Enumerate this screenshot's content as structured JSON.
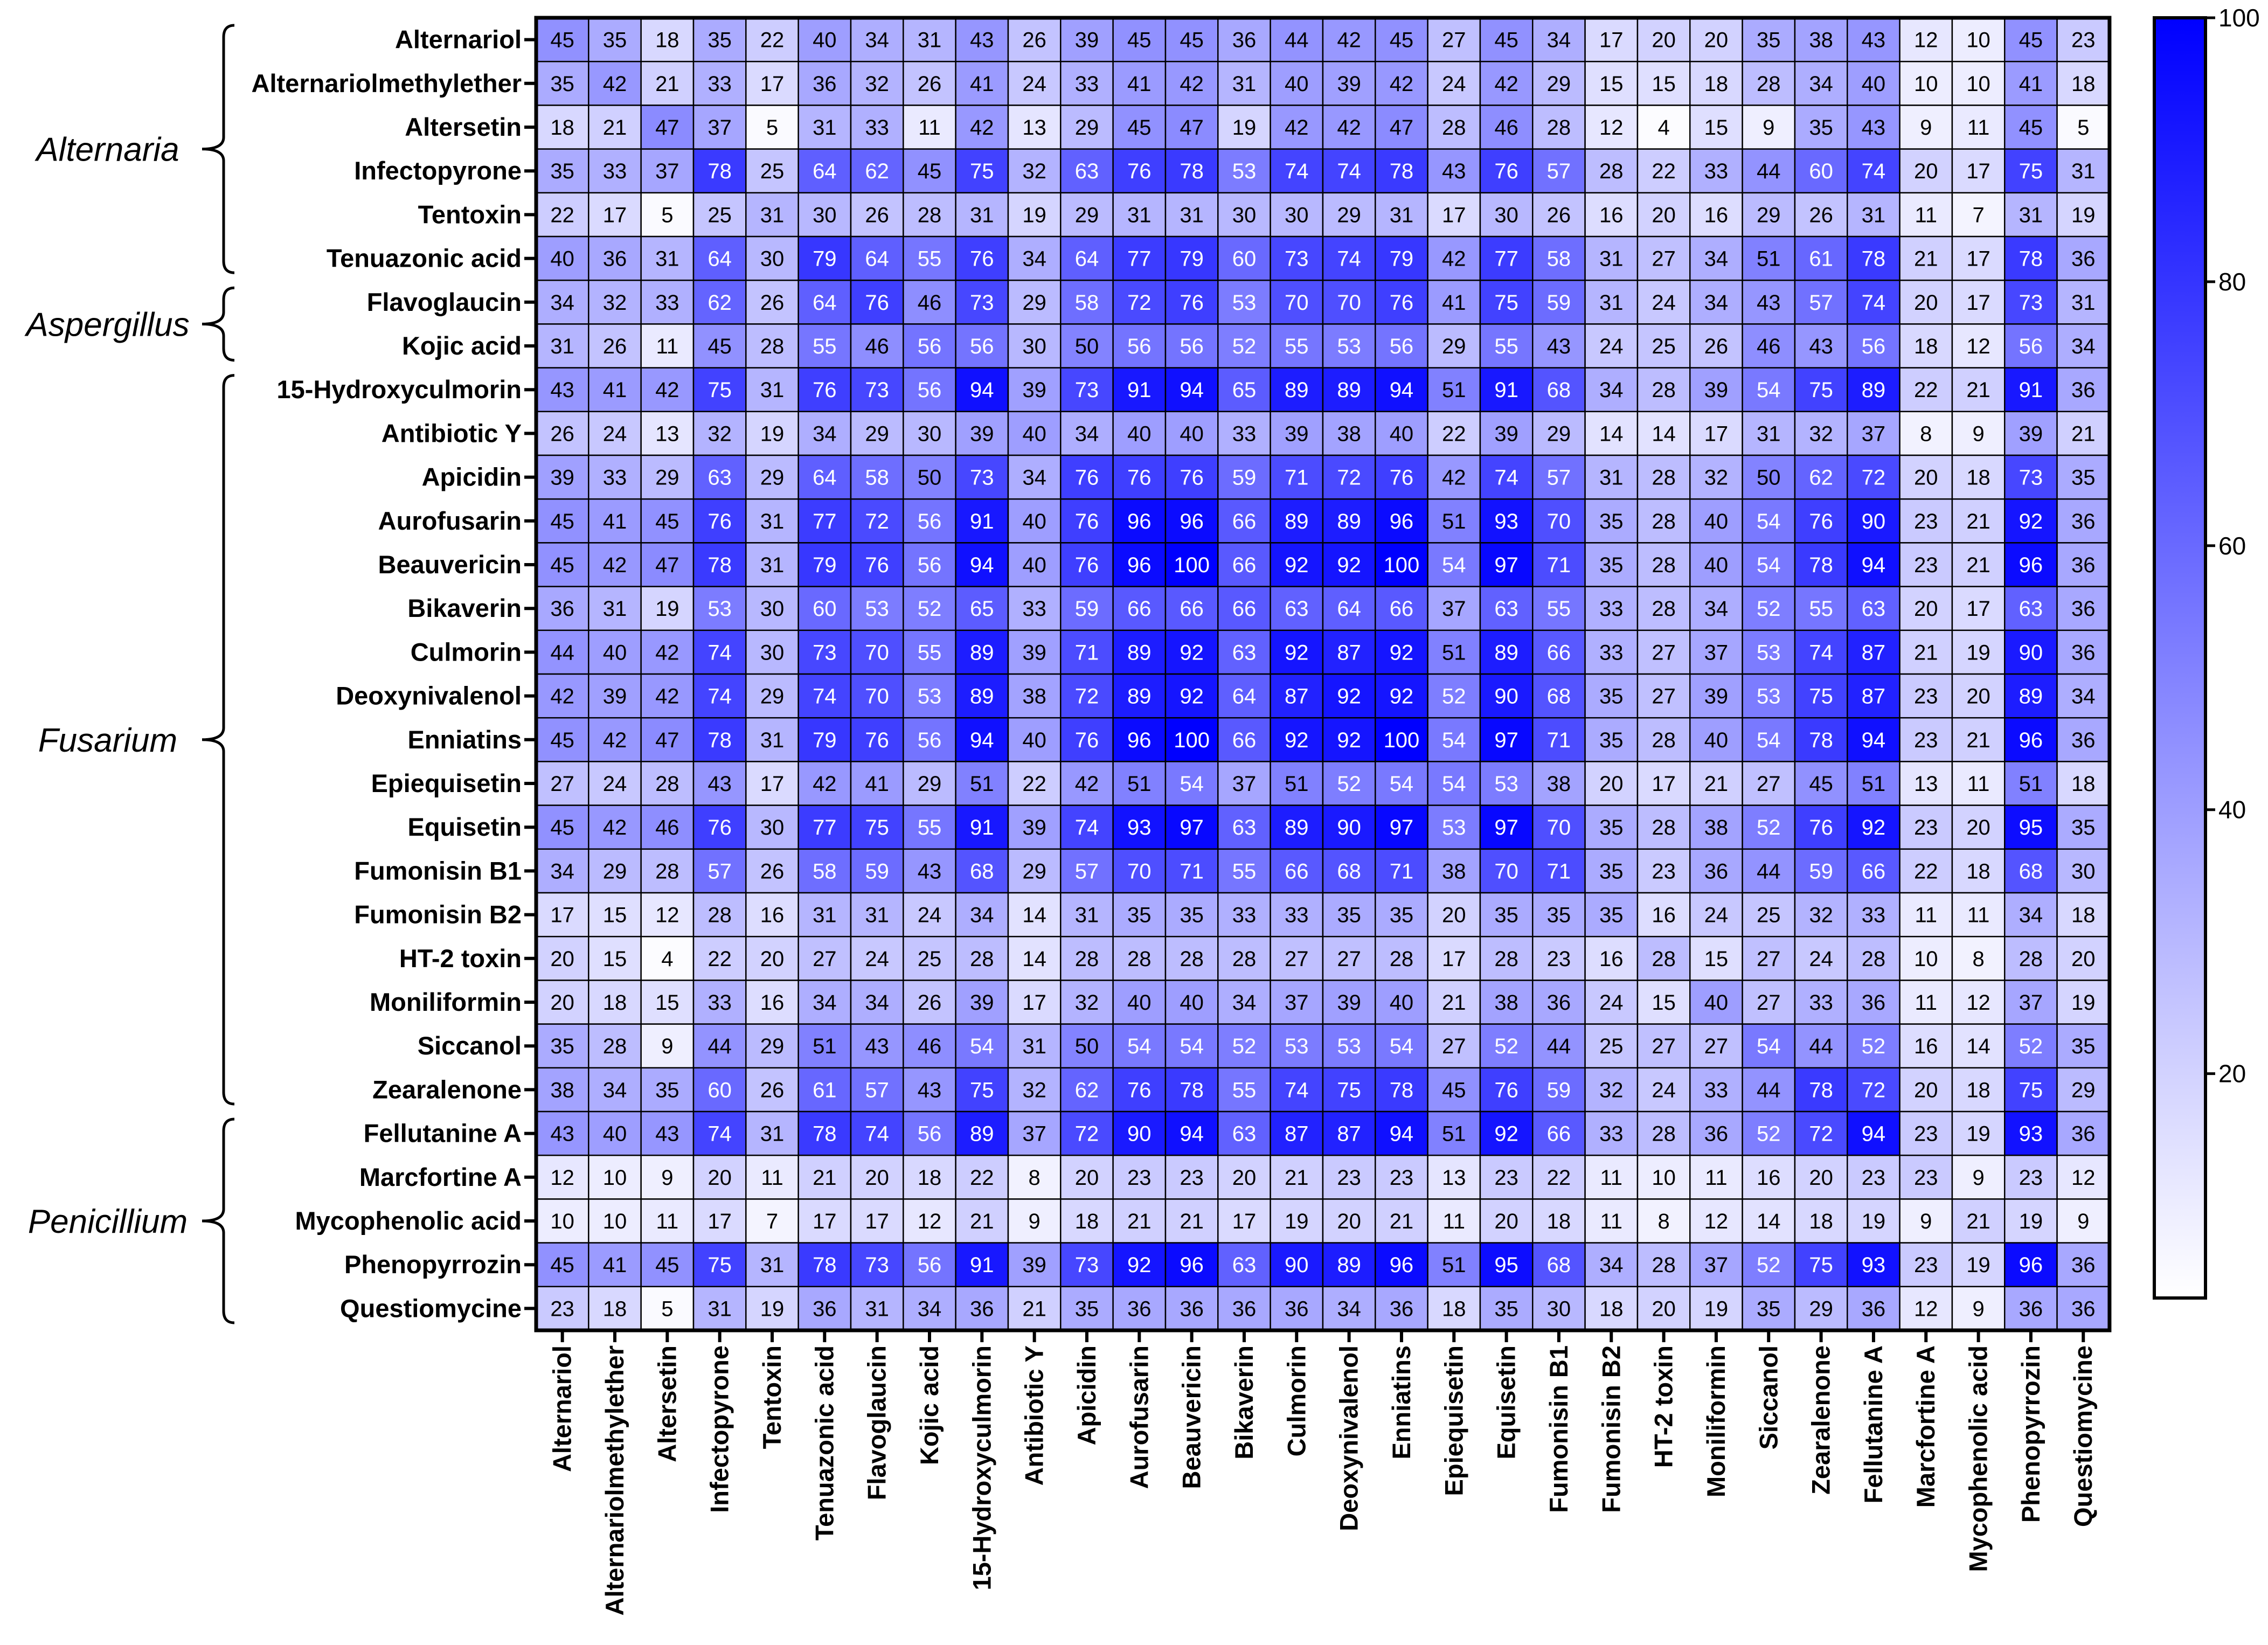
{
  "chart_data": {
    "type": "heatmap",
    "title": "",
    "xlabel": "",
    "ylabel": "",
    "labels": [
      "Alternariol",
      "Alternariolmethylether",
      "Altersetin",
      "Infectopyrone",
      "Tentoxin",
      "Tenuazonic acid",
      "Flavoglaucin",
      "Kojic acid",
      "15-Hydroxyculmorin",
      "Antibiotic Y",
      "Apicidin",
      "Aurofusarin",
      "Beauvericin",
      "Bikaverin",
      "Culmorin",
      "Deoxynivalenol",
      "Enniatins",
      "Epiequisetin",
      "Equisetin",
      "Fumonisin B1",
      "Fumonisin B2",
      "HT-2 toxin",
      "Moniliformin",
      "Siccanol",
      "Zearalenone",
      "Fellutanine A",
      "Marcfortine A",
      "Mycophenolic acid",
      "Phenopyrrozin",
      "Questiomycine"
    ],
    "groups": [
      {
        "name": "Alternaria",
        "rows": [
          0,
          5
        ]
      },
      {
        "name": "Aspergillus",
        "rows": [
          6,
          7
        ]
      },
      {
        "name": "Fusarium",
        "rows": [
          8,
          24
        ]
      },
      {
        "name": "Penicillium",
        "rows": [
          25,
          29
        ]
      }
    ],
    "values": [
      [
        45,
        35,
        18,
        35,
        22,
        40,
        34,
        31,
        43,
        26,
        39,
        45,
        45,
        36,
        44,
        42,
        45,
        27,
        45,
        34,
        17,
        20,
        20,
        35,
        38,
        43,
        12,
        10,
        45,
        23
      ],
      [
        35,
        42,
        21,
        33,
        17,
        36,
        32,
        26,
        41,
        24,
        33,
        41,
        42,
        31,
        40,
        39,
        42,
        24,
        42,
        29,
        15,
        15,
        18,
        28,
        34,
        40,
        10,
        10,
        41,
        18
      ],
      [
        18,
        21,
        47,
        37,
        5,
        31,
        33,
        11,
        42,
        13,
        29,
        45,
        47,
        19,
        42,
        42,
        47,
        28,
        46,
        28,
        12,
        4,
        15,
        9,
        35,
        43,
        9,
        11,
        45,
        5
      ],
      [
        35,
        33,
        37,
        78,
        25,
        64,
        62,
        45,
        75,
        32,
        63,
        76,
        78,
        53,
        74,
        74,
        78,
        43,
        76,
        57,
        28,
        22,
        33,
        44,
        60,
        74,
        20,
        17,
        75,
        31
      ],
      [
        22,
        17,
        5,
        25,
        31,
        30,
        26,
        28,
        31,
        19,
        29,
        31,
        31,
        30,
        30,
        29,
        31,
        17,
        30,
        26,
        16,
        20,
        16,
        29,
        26,
        31,
        11,
        7,
        31,
        19
      ],
      [
        40,
        36,
        31,
        64,
        30,
        79,
        64,
        55,
        76,
        34,
        64,
        77,
        79,
        60,
        73,
        74,
        79,
        42,
        77,
        58,
        31,
        27,
        34,
        51,
        61,
        78,
        21,
        17,
        78,
        36
      ],
      [
        34,
        32,
        33,
        62,
        26,
        64,
        76,
        46,
        73,
        29,
        58,
        72,
        76,
        53,
        70,
        70,
        76,
        41,
        75,
        59,
        31,
        24,
        34,
        43,
        57,
        74,
        20,
        17,
        73,
        31
      ],
      [
        31,
        26,
        11,
        45,
        28,
        55,
        46,
        56,
        56,
        30,
        50,
        56,
        56,
        52,
        55,
        53,
        56,
        29,
        55,
        43,
        24,
        25,
        26,
        46,
        43,
        56,
        18,
        12,
        56,
        34
      ],
      [
        43,
        41,
        42,
        75,
        31,
        76,
        73,
        56,
        94,
        39,
        73,
        91,
        94,
        65,
        89,
        89,
        94,
        51,
        91,
        68,
        34,
        28,
        39,
        54,
        75,
        89,
        22,
        21,
        91,
        36
      ],
      [
        26,
        24,
        13,
        32,
        19,
        34,
        29,
        30,
        39,
        40,
        34,
        40,
        40,
        33,
        39,
        38,
        40,
        22,
        39,
        29,
        14,
        14,
        17,
        31,
        32,
        37,
        8,
        9,
        39,
        21
      ],
      [
        39,
        33,
        29,
        63,
        29,
        64,
        58,
        50,
        73,
        34,
        76,
        76,
        76,
        59,
        71,
        72,
        76,
        42,
        74,
        57,
        31,
        28,
        32,
        50,
        62,
        72,
        20,
        18,
        73,
        35
      ],
      [
        45,
        41,
        45,
        76,
        31,
        77,
        72,
        56,
        91,
        40,
        76,
        96,
        96,
        66,
        89,
        89,
        96,
        51,
        93,
        70,
        35,
        28,
        40,
        54,
        76,
        90,
        23,
        21,
        92,
        36
      ],
      [
        45,
        42,
        47,
        78,
        31,
        79,
        76,
        56,
        94,
        40,
        76,
        96,
        100,
        66,
        92,
        92,
        100,
        54,
        97,
        71,
        35,
        28,
        40,
        54,
        78,
        94,
        23,
        21,
        96,
        36
      ],
      [
        36,
        31,
        19,
        53,
        30,
        60,
        53,
        52,
        65,
        33,
        59,
        66,
        66,
        66,
        63,
        64,
        66,
        37,
        63,
        55,
        33,
        28,
        34,
        52,
        55,
        63,
        20,
        17,
        63,
        36
      ],
      [
        44,
        40,
        42,
        74,
        30,
        73,
        70,
        55,
        89,
        39,
        71,
        89,
        92,
        63,
        92,
        87,
        92,
        51,
        89,
        66,
        33,
        27,
        37,
        53,
        74,
        87,
        21,
        19,
        90,
        36
      ],
      [
        42,
        39,
        42,
        74,
        29,
        74,
        70,
        53,
        89,
        38,
        72,
        89,
        92,
        64,
        87,
        92,
        92,
        52,
        90,
        68,
        35,
        27,
        39,
        53,
        75,
        87,
        23,
        20,
        89,
        34
      ],
      [
        45,
        42,
        47,
        78,
        31,
        79,
        76,
        56,
        94,
        40,
        76,
        96,
        100,
        66,
        92,
        92,
        100,
        54,
        97,
        71,
        35,
        28,
        40,
        54,
        78,
        94,
        23,
        21,
        96,
        36
      ],
      [
        27,
        24,
        28,
        43,
        17,
        42,
        41,
        29,
        51,
        22,
        42,
        51,
        54,
        37,
        51,
        52,
        54,
        54,
        53,
        38,
        20,
        17,
        21,
        27,
        45,
        51,
        13,
        11,
        51,
        18
      ],
      [
        45,
        42,
        46,
        76,
        30,
        77,
        75,
        55,
        91,
        39,
        74,
        93,
        97,
        63,
        89,
        90,
        97,
        53,
        97,
        70,
        35,
        28,
        38,
        52,
        76,
        92,
        23,
        20,
        95,
        35
      ],
      [
        34,
        29,
        28,
        57,
        26,
        58,
        59,
        43,
        68,
        29,
        57,
        70,
        71,
        55,
        66,
        68,
        71,
        38,
        70,
        71,
        35,
        23,
        36,
        44,
        59,
        66,
        22,
        18,
        68,
        30
      ],
      [
        17,
        15,
        12,
        28,
        16,
        31,
        31,
        24,
        34,
        14,
        31,
        35,
        35,
        33,
        33,
        35,
        35,
        20,
        35,
        35,
        35,
        16,
        24,
        25,
        32,
        33,
        11,
        11,
        34,
        18
      ],
      [
        20,
        15,
        4,
        22,
        20,
        27,
        24,
        25,
        28,
        14,
        28,
        28,
        28,
        28,
        27,
        27,
        28,
        17,
        28,
        23,
        16,
        28,
        15,
        27,
        24,
        28,
        10,
        8,
        28,
        20
      ],
      [
        20,
        18,
        15,
        33,
        16,
        34,
        34,
        26,
        39,
        17,
        32,
        40,
        40,
        34,
        37,
        39,
        40,
        21,
        38,
        36,
        24,
        15,
        40,
        27,
        33,
        36,
        11,
        12,
        37,
        19
      ],
      [
        35,
        28,
        9,
        44,
        29,
        51,
        43,
        46,
        54,
        31,
        50,
        54,
        54,
        52,
        53,
        53,
        54,
        27,
        52,
        44,
        25,
        27,
        27,
        54,
        44,
        52,
        16,
        14,
        52,
        35
      ],
      [
        38,
        34,
        35,
        60,
        26,
        61,
        57,
        43,
        75,
        32,
        62,
        76,
        78,
        55,
        74,
        75,
        78,
        45,
        76,
        59,
        32,
        24,
        33,
        44,
        78,
        72,
        20,
        18,
        75,
        29
      ],
      [
        43,
        40,
        43,
        74,
        31,
        78,
        74,
        56,
        89,
        37,
        72,
        90,
        94,
        63,
        87,
        87,
        94,
        51,
        92,
        66,
        33,
        28,
        36,
        52,
        72,
        94,
        23,
        19,
        93,
        36
      ],
      [
        12,
        10,
        9,
        20,
        11,
        21,
        20,
        18,
        22,
        8,
        20,
        23,
        23,
        20,
        21,
        23,
        23,
        13,
        23,
        22,
        11,
        10,
        11,
        16,
        20,
        23,
        23,
        9,
        23,
        12
      ],
      [
        10,
        10,
        11,
        17,
        7,
        17,
        17,
        12,
        21,
        9,
        18,
        21,
        21,
        17,
        19,
        20,
        21,
        11,
        20,
        18,
        11,
        8,
        12,
        14,
        18,
        19,
        9,
        21,
        19,
        9
      ],
      [
        45,
        41,
        45,
        75,
        31,
        78,
        73,
        56,
        91,
        39,
        73,
        92,
        96,
        63,
        90,
        89,
        96,
        51,
        95,
        68,
        34,
        28,
        37,
        52,
        75,
        93,
        23,
        19,
        96,
        36
      ],
      [
        23,
        18,
        5,
        31,
        19,
        36,
        31,
        34,
        36,
        21,
        35,
        36,
        36,
        36,
        36,
        34,
        36,
        18,
        35,
        30,
        18,
        20,
        19,
        35,
        29,
        36,
        12,
        9,
        36,
        36
      ]
    ],
    "colorbar": {
      "min": 3,
      "max": 100,
      "ticks": [
        20,
        40,
        60,
        80,
        100
      ],
      "low_color": "#ffffff",
      "high_color": "#0000ff"
    }
  }
}
